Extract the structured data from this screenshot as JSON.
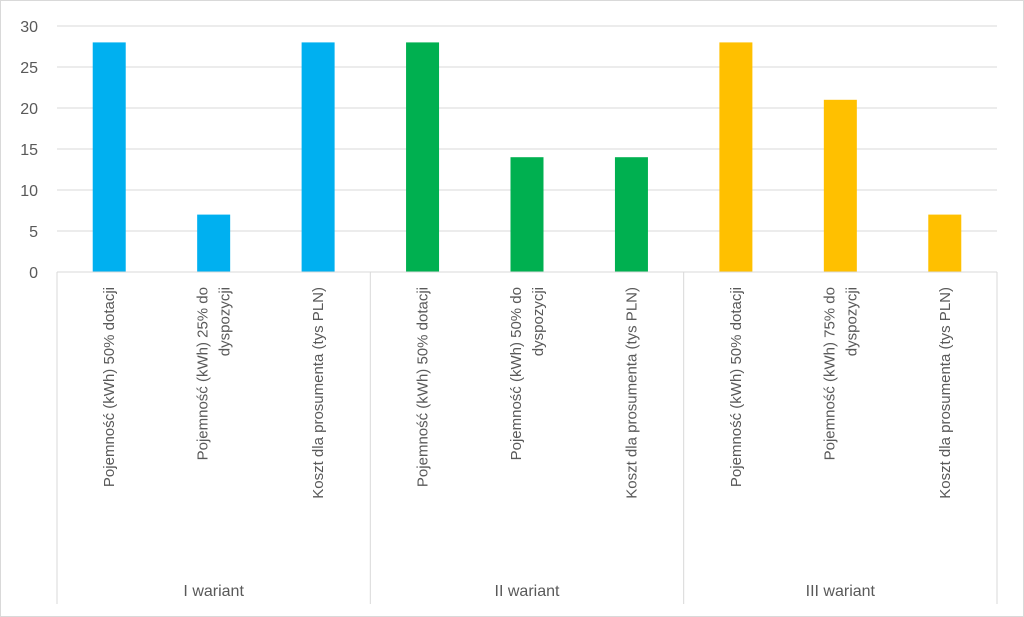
{
  "chart_data": {
    "type": "bar",
    "title": "",
    "xlabel": "",
    "ylabel": "",
    "ylim": [
      0,
      30
    ],
    "yticks": [
      0,
      5,
      10,
      15,
      20,
      25,
      30
    ],
    "grid": true,
    "legend": "none",
    "groups": [
      {
        "name": "I wariant",
        "color": "#00B0F0",
        "bars": [
          {
            "label": [
              "Pojemność (kWh) 50% dotacji"
            ],
            "value": 28
          },
          {
            "label": [
              "Pojemność (kWh) 25% do",
              "dyspozycji"
            ],
            "value": 7
          },
          {
            "label": [
              "Koszt dla prosumenta (tys PLN)"
            ],
            "value": 28
          }
        ]
      },
      {
        "name": "II wariant",
        "color": "#00B050",
        "bars": [
          {
            "label": [
              "Pojemność (kWh) 50% dotacji"
            ],
            "value": 28
          },
          {
            "label": [
              "Pojemność (kWh) 50% do",
              "dyspozycji"
            ],
            "value": 14
          },
          {
            "label": [
              "Koszt dla prosumenta (tys PLN)"
            ],
            "value": 14
          }
        ]
      },
      {
        "name": "III wariant",
        "color": "#FFC000",
        "bars": [
          {
            "label": [
              "Pojemność (kWh) 50% dotacji"
            ],
            "value": 28
          },
          {
            "label": [
              "Pojemność (kWh) 75% do",
              "dyspozycji"
            ],
            "value": 21
          },
          {
            "label": [
              "Koszt dla prosumenta (tys PLN)"
            ],
            "value": 7
          }
        ]
      }
    ]
  }
}
